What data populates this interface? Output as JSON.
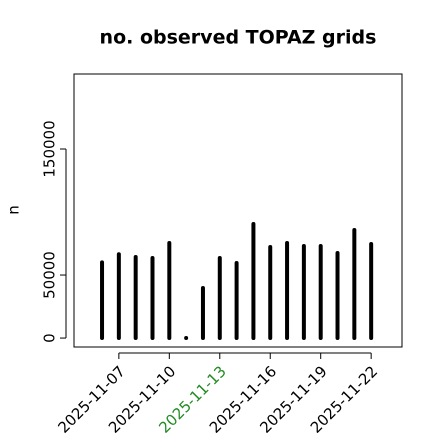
{
  "chart_data": {
    "type": "bar",
    "title": "no. observed TOPAZ grids",
    "y_label": "n",
    "x": [
      "2025-11-06",
      "2025-11-07",
      "2025-11-08",
      "2025-11-09",
      "2025-11-10",
      "2025-11-11",
      "2025-11-12",
      "2025-11-13",
      "2025-11-14",
      "2025-11-15",
      "2025-11-16",
      "2025-11-17",
      "2025-11-18",
      "2025-11-19",
      "2025-11-20",
      "2025-11-21",
      "2025-11-22"
    ],
    "values": [
      60000,
      66500,
      64300,
      63500,
      75400,
      0,
      39700,
      63500,
      59500,
      90500,
      72200,
      75400,
      73000,
      73000,
      67500,
      85700,
      74600
    ],
    "color": "#000000",
    "xlim": [
      "2025-11-04T08:00:00Z",
      "2025-11-23T20:00:00Z"
    ],
    "xticks": [
      "2025-11-07",
      "2025-11-10",
      "2025-11-13",
      "2025-11-16",
      "2025-11-19",
      "2025-11-22"
    ],
    "highlight_tick": "2025-11-13",
    "highlight_color": "#228b22",
    "ylim": [
      -7100,
      209500
    ],
    "yticks": [
      0,
      50000,
      150000
    ]
  }
}
